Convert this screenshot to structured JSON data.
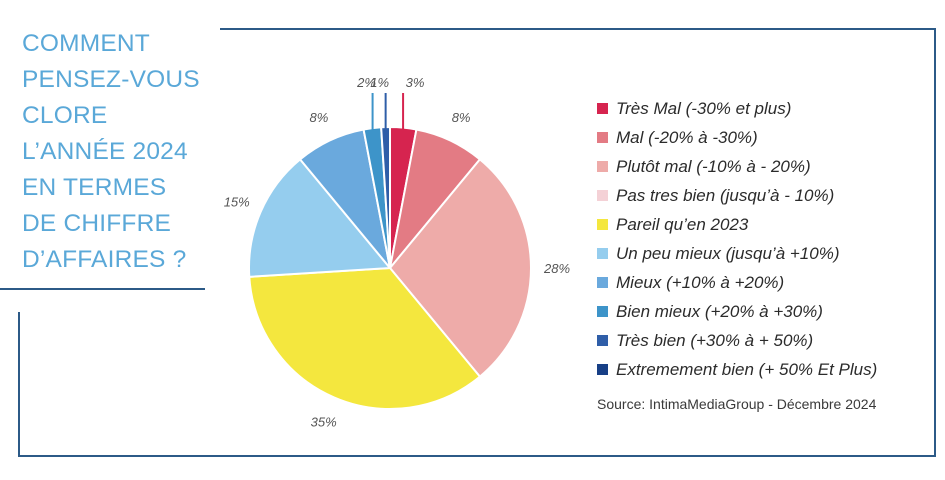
{
  "title_lines": [
    "COMMENT",
    "PENSEZ-VOUS",
    "CLORE",
    "L’ANNÉE 2024",
    "EN TERMES",
    "DE CHIFFRE",
    "D’AFFAIRES ?"
  ],
  "source": "Source: IntimaMediaGroup - Décembre 2024",
  "chart_data": {
    "type": "pie",
    "start": "top",
    "direction": "clockwise",
    "categories": [
      "Très Mal (-30% et plus)",
      "Mal (-20% à -30%)",
      "Plutôt mal (-10% à - 20%)",
      "Pas tres bien (jusqu’à - 10%)",
      "Pareil qu’en 2023",
      "Un peu mieux (jusqu’à +10%)",
      "Mieux (+10% à +20%)",
      "Bien mieux (+20% à +30%)",
      "Très bien (+30% à + 50%)",
      "Extremement bien (+ 50% Et Plus)"
    ],
    "values": [
      3,
      8,
      28,
      0,
      35,
      15,
      8,
      2,
      1,
      0
    ],
    "data_labels": [
      "3%",
      "8%",
      "28%",
      "",
      "35%",
      "15%",
      "8%",
      "2%",
      "1%",
      ""
    ],
    "colors": [
      "#d6244f",
      "#e37b84",
      "#eeaba9",
      "#f4d1d6",
      "#f4e73e",
      "#95cdee",
      "#6aa9dd",
      "#3d94c9",
      "#2f5ea8",
      "#173f86"
    ]
  }
}
